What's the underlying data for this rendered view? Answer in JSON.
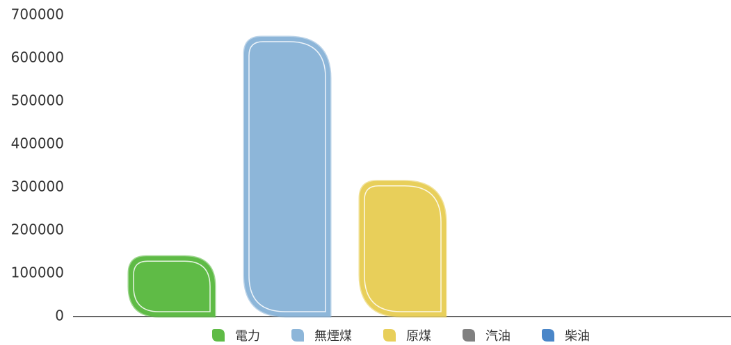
{
  "chart_data": {
    "type": "bar",
    "categories": [
      "電力",
      "無煙煤",
      "原煤",
      "汽油",
      "柴油"
    ],
    "values": [
      140000,
      650000,
      315000,
      0,
      0
    ],
    "colors": [
      "#5fbb46",
      "#8db6d9",
      "#e8cf5a",
      "#808080",
      "#4a86c8"
    ],
    "ylim": [
      0,
      700000
    ],
    "yticks": [
      0,
      100000,
      200000,
      300000,
      400000,
      500000,
      600000,
      700000
    ],
    "grid": false
  }
}
